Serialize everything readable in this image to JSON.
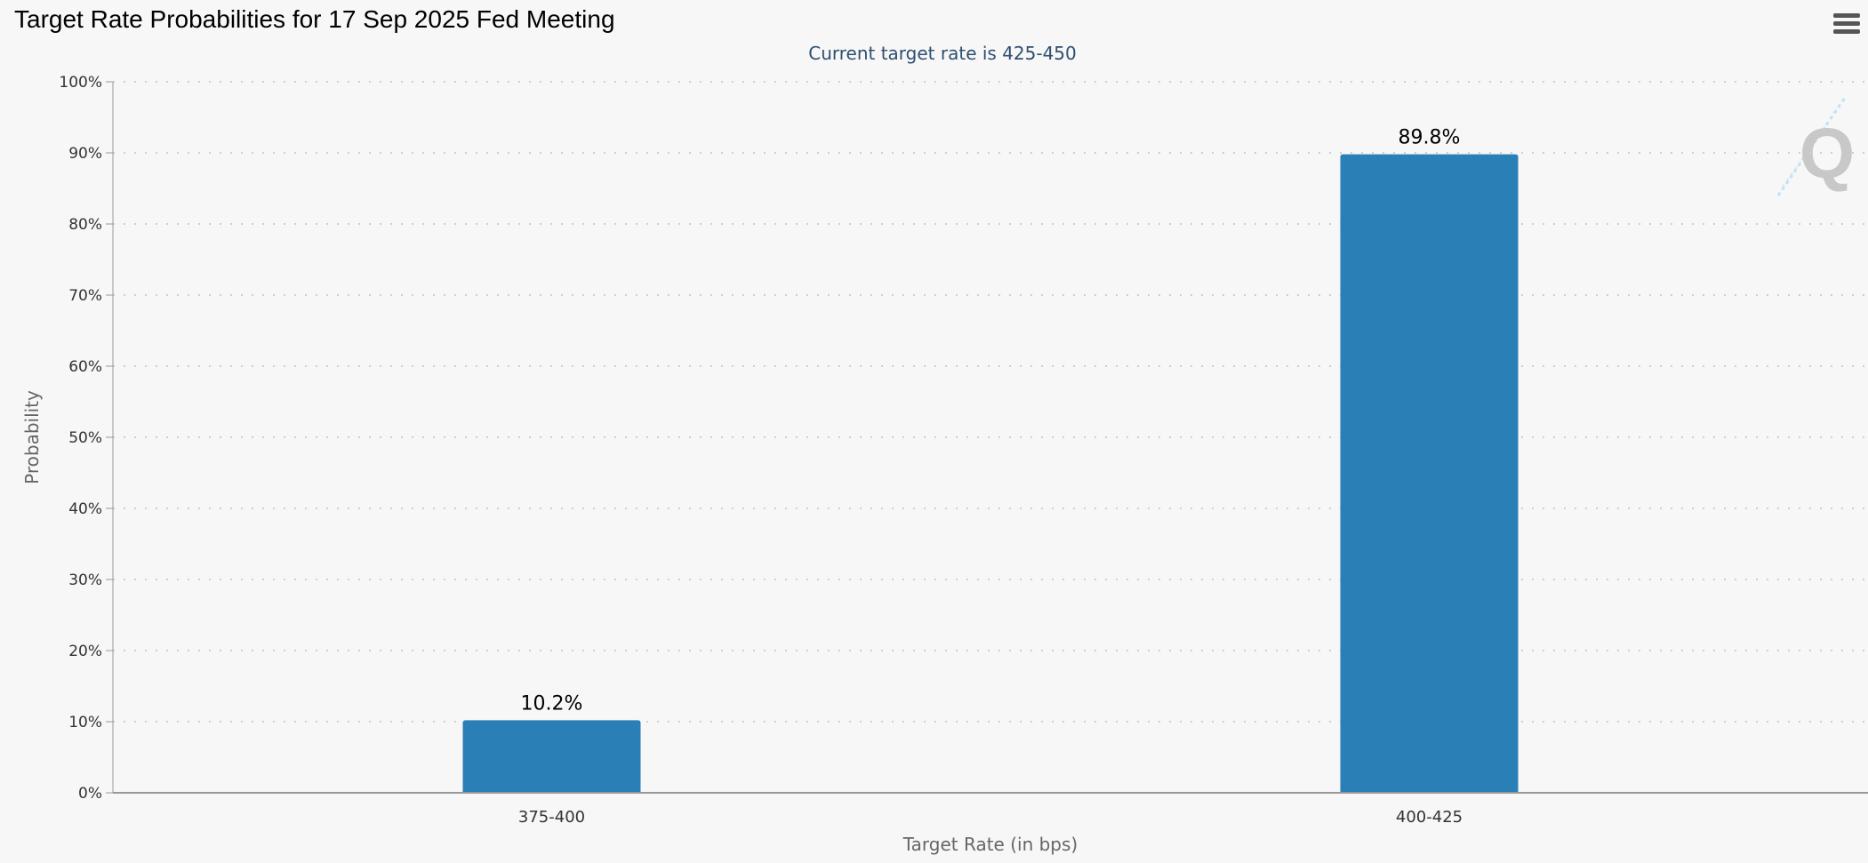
{
  "page": {
    "title": "Target Rate Probabilities for 17 Sep 2025 Fed Meeting"
  },
  "menu": {
    "icon": "hamburger-menu-icon"
  },
  "watermark": {
    "letter": "Q"
  },
  "colors": {
    "bar": "#2a7fb6",
    "grid": "#cfcfcf",
    "axis": "#999999",
    "subtitle": "#2f4f6f",
    "background": "#f7f7f7"
  },
  "chart_data": {
    "type": "bar",
    "subtitle": "Current target rate is 425-450",
    "xlabel": "Target Rate (in bps)",
    "ylabel": "Probability",
    "categories": [
      "375-400",
      "400-425"
    ],
    "values": [
      10.2,
      89.8
    ],
    "data_labels": [
      "10.2%",
      "89.8%"
    ],
    "ylim": [
      0,
      100
    ],
    "yticks": [
      0,
      10,
      20,
      30,
      40,
      50,
      60,
      70,
      80,
      90,
      100
    ],
    "ytick_labels": [
      "0%",
      "10%",
      "20%",
      "30%",
      "40%",
      "50%",
      "60%",
      "70%",
      "80%",
      "90%",
      "100%"
    ],
    "grid": true,
    "legend": "none"
  }
}
